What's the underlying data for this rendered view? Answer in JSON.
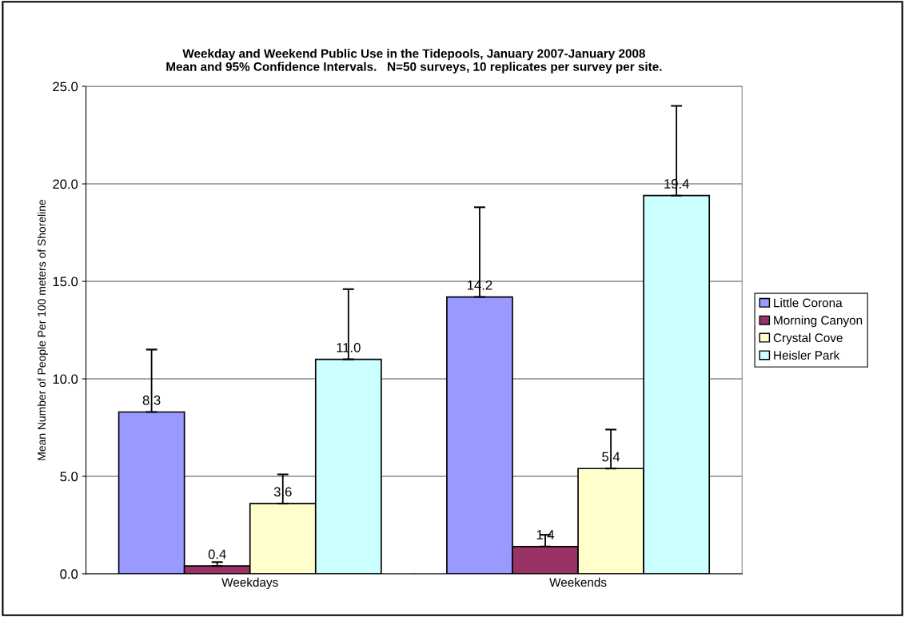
{
  "chart_data": {
    "type": "bar",
    "title": "Weekday and Weekend Public Use in the Tidepools, January 2007-January 2008\nMean and 95% Confidence Intervals.   N=50 surveys, 10 replicates per survey per site.",
    "ylabel": "Mean Number of People Per 100 meters of Shoreline",
    "categories": [
      "Weekdays",
      "Weekends"
    ],
    "series": [
      {
        "name": "Little Corona",
        "color": "#9999ff",
        "values": [
          8.3,
          14.2
        ],
        "errors": [
          [
            8.3,
            11.5
          ],
          [
            14.2,
            18.8
          ]
        ],
        "value_labels": [
          "8.3",
          "14.2"
        ]
      },
      {
        "name": "Morning Canyon",
        "color": "#993366",
        "values": [
          0.4,
          1.4
        ],
        "errors": [
          [
            0.4,
            0.6
          ],
          [
            1.4,
            2.0
          ]
        ],
        "value_labels": [
          "0.4",
          "1.4"
        ]
      },
      {
        "name": "Crystal Cove",
        "color": "#ffffcc",
        "values": [
          3.6,
          5.4
        ],
        "errors": [
          [
            3.6,
            5.1
          ],
          [
            5.4,
            7.4
          ]
        ],
        "value_labels": [
          "3.6",
          "5.4"
        ]
      },
      {
        "name": "Heisler Park",
        "color": "#ccffff",
        "values": [
          11.0,
          19.4
        ],
        "errors": [
          [
            11.0,
            14.6
          ],
          [
            19.4,
            24.0
          ]
        ],
        "value_labels": [
          "11.0",
          "19.4"
        ]
      }
    ],
    "ylim": [
      0,
      25
    ],
    "yticks": [
      {
        "value": 0,
        "label": "0.0"
      },
      {
        "value": 5,
        "label": "5.0"
      },
      {
        "value": 10,
        "label": "10.0"
      },
      {
        "value": 15,
        "label": "15.0"
      },
      {
        "value": 20,
        "label": "20.0"
      },
      {
        "value": 25,
        "label": "25.0"
      }
    ],
    "grid": "y",
    "legend": "right"
  }
}
